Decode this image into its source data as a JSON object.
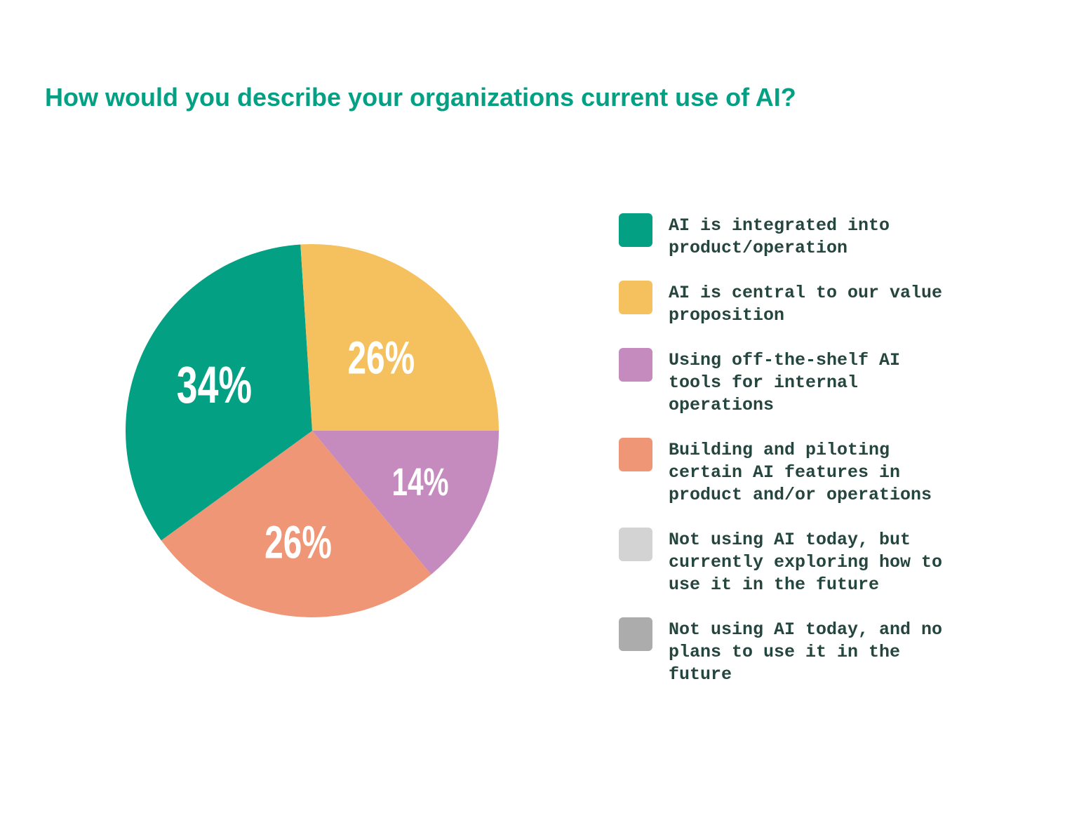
{
  "chart_data": {
    "type": "pie",
    "title": "How would you describe your organizations current use of AI?",
    "legend_position": "right",
    "slices": [
      {
        "label": "AI is integrated into product/operation",
        "value": 34,
        "display": "34%",
        "color": "#03a084"
      },
      {
        "label": "AI is central to our value proposition",
        "value": 26,
        "display": "26%",
        "color": "#f4c15e"
      },
      {
        "label": "Using off-the-shelf AI tools for internal operations",
        "value": 14,
        "display": "14%",
        "color": "#c58bbf"
      },
      {
        "label": "Building and piloting certain AI features in product and/or operations",
        "value": 26,
        "display": "26%",
        "color": "#ef9676"
      },
      {
        "label": "Not using AI today, but currently exploring how to use it in the future",
        "value": 0,
        "display": "",
        "color": "#d3d3d3"
      },
      {
        "label": "Not using AI today, and no plans to use it in the future",
        "value": 0,
        "display": "",
        "color": "#acacac"
      }
    ],
    "legend": [
      {
        "text": "AI is integrated into\nproduct/operation",
        "color": "#03a084"
      },
      {
        "text": "AI is central to our value\nproposition",
        "color": "#f4c15e"
      },
      {
        "text": "Using off-the-shelf AI\ntools for internal\noperations",
        "color": "#c58bbf"
      },
      {
        "text": "Building and piloting\ncertain AI features in\nproduct and/or operations",
        "color": "#ef9676"
      },
      {
        "text": "Not using AI today, but\ncurrently exploring how to\nuse it in the future",
        "color": "#d3d3d3"
      },
      {
        "text": "Not using AI today, and no\nplans to use it in the\nfuture",
        "color": "#acacac"
      }
    ]
  }
}
